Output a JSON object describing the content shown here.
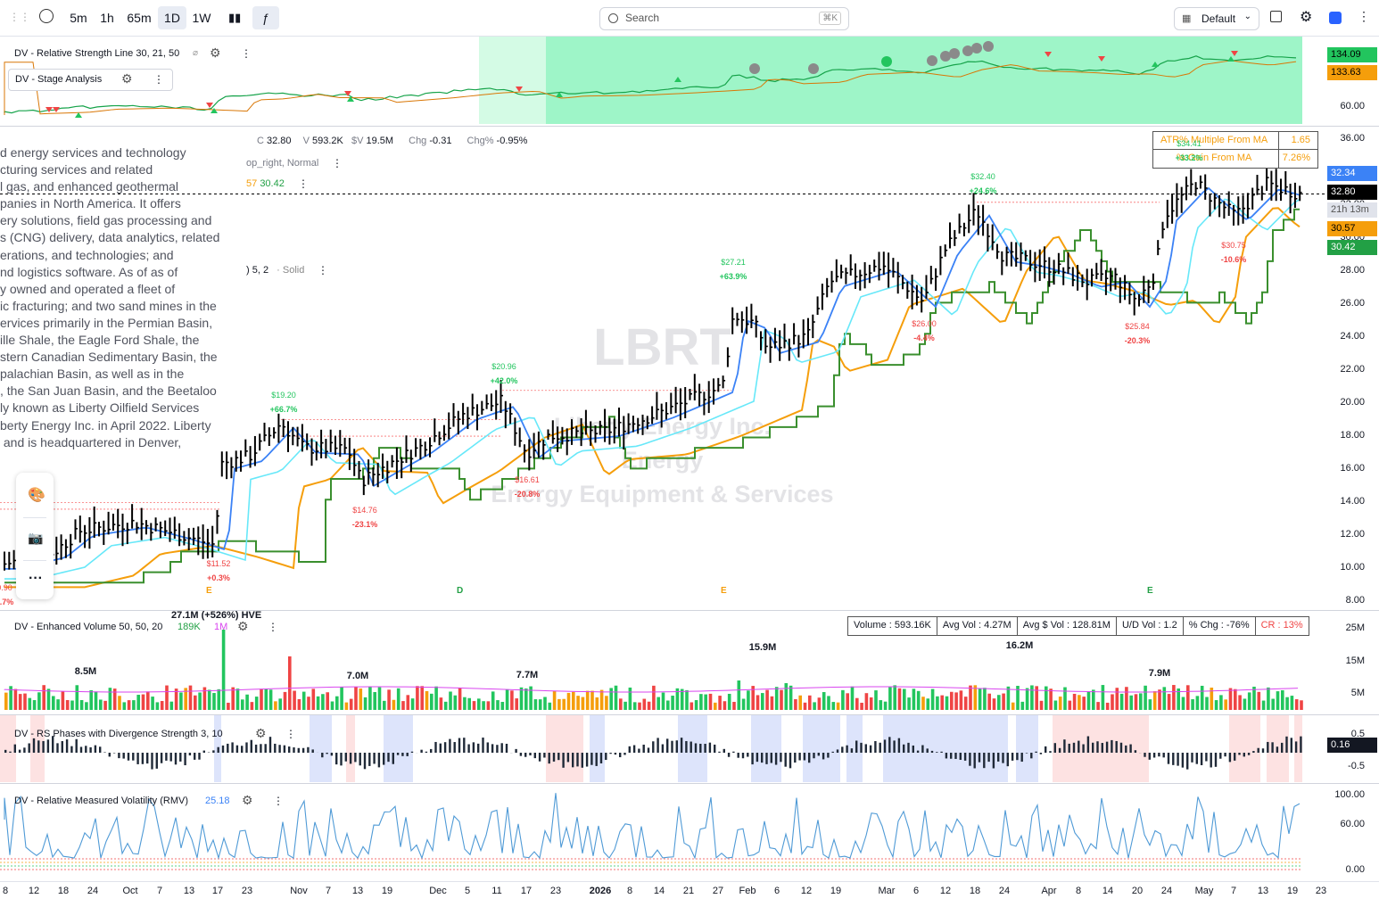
{
  "toolbar": {
    "intervals": [
      "5m",
      "1h",
      "65m",
      "1D",
      "1W"
    ],
    "active_interval": "1D",
    "search_placeholder": "Search",
    "search_shortcut": "⌘K",
    "layout_label": "Default",
    "accent": "#2962ff"
  },
  "rs_pane": {
    "title": "DV - Relative Strength Line 30, 21, 50",
    "sub_indicator": "DV - Stage Analysis",
    "axis": [
      "60.00"
    ],
    "tags": [
      {
        "value": "134.09",
        "color": "#22c55e"
      },
      {
        "value": "133.63",
        "color": "#f59e0b"
      }
    ]
  },
  "main_pane": {
    "ohlc": {
      "c_label": "C",
      "close": "32.80",
      "v_label": "V",
      "volume": "593.2K",
      "dv_label": "$V",
      "dollar_volume": "19.5M",
      "chg_label": "Chg",
      "chg": "-0.31",
      "chgp_label": "Chg%",
      "chgp": "-0.95%"
    },
    "legend_partial_1": "op_right, Normal",
    "legend_partial_2_a": "57",
    "legend_partial_2_b": "30.42",
    "legend_partial_3_a": ") 5, 2",
    "legend_partial_3_b": "· Solid",
    "description_lines": [
      "d energy services and technology",
      "cturing services and related",
      "l gas, and enhanced geothermal",
      "panies in North America. It offers",
      "ery solutions, field gas processing and",
      "s (CNG) delivery, data analytics, related",
      "erations, and technologies; and",
      "nd logistics software. As of as of",
      "y owned and operated a fleet of",
      "ic fracturing; and two sand mines in the",
      "ervices primarily in the Permian Basin,",
      "ille Shale, the Eagle Ford Shale, the",
      "stern Canadian Sedimentary Basin, the",
      "palachian Basin, as well as in the",
      ", the San Juan Basin, and the Beetaloo",
      "ly known as Liberty Oilfield Services",
      "berty Energy Inc. in April 2022. Liberty",
      " and is headquartered in Denver,"
    ],
    "watermark_symbol": "LBRT",
    "watermark_name": "Liberty Energy Inc.",
    "watermark_sector": "Energy",
    "watermark_industry": "Energy Equipment & Services",
    "axis": [
      "36.00",
      "34.00",
      "32.00",
      "30.00",
      "28.00",
      "26.00",
      "24.00",
      "22.00",
      "20.00",
      "18.00",
      "16.00",
      "14.00",
      "12.00",
      "10.00",
      "8.00"
    ],
    "tags": [
      {
        "value": "32.34",
        "color": "#3b82f6"
      },
      {
        "value": "32.80",
        "color": "#000000"
      },
      {
        "value": "21h 13m",
        "color": "#e0e3eb"
      },
      {
        "value": "30.57",
        "color": "#f59e0b"
      },
      {
        "value": "30.42",
        "color": "#22a045"
      }
    ],
    "info_table": [
      {
        "label": "ATR% Multiple From MA",
        "value": "1.65"
      },
      {
        "label": "% Gain From MA",
        "value": "7.26%"
      }
    ],
    "pivots": [
      {
        "price": "$19.20",
        "pct": "+66.7%",
        "type": "high"
      },
      {
        "price": "$20.96",
        "pct": "+42.0%",
        "type": "high"
      },
      {
        "price": "$27.21",
        "pct": "+63.9%",
        "type": "high"
      },
      {
        "price": "$32.40",
        "pct": "+24.6%",
        "type": "high"
      },
      {
        "price": "$34.41",
        "pct": "+33.2%",
        "type": "high"
      },
      {
        "price": "$11.52",
        "pct": "+0.3%",
        "type": "low"
      },
      {
        "price": "$14.76",
        "pct": "-23.1%",
        "type": "low"
      },
      {
        "price": "$16.61",
        "pct": "-20.8%",
        "type": "low"
      },
      {
        "price": "$26.00",
        "pct": "-4.4%",
        "type": "low"
      },
      {
        "price": "$25.84",
        "pct": "-20.3%",
        "type": "low"
      },
      {
        "price": "$30.75",
        "pct": "-10.6%",
        "type": "low"
      },
      {
        "price": "0.90",
        "pct": "3.7%",
        "type": "low"
      }
    ],
    "earnings_markers": [
      "E",
      "D",
      "E",
      "E"
    ]
  },
  "volume_pane": {
    "title": "DV - Enhanced Volume 50, 50, 20",
    "value_a": "189K",
    "value_b": "1M",
    "hve": "27.1M (+526%) HVE",
    "stats": [
      "Volume : 593.16K",
      "Avg Vol : 4.27M",
      "Avg $ Vol : 128.81M",
      "U/D Vol : 1.2",
      "% Chg : -76%",
      "CR : 13%"
    ],
    "peak_labels": [
      "8.5M",
      "7.0M",
      "7.7M",
      "15.9M",
      "16.2M",
      "7.9M"
    ],
    "axis": [
      "25M",
      "15M",
      "5M"
    ]
  },
  "rs_phases_pane": {
    "title": "DV - RS Phases with Divergence Strength 3, 10",
    "axis": [
      "0.5",
      "-0.5"
    ],
    "tag": "0.16"
  },
  "rmv_pane": {
    "title": "DV - Relative Measured Volatility (RMV)",
    "value": "25.18",
    "axis": [
      "100.00",
      "60.00",
      "0.00"
    ]
  },
  "x_axis": [
    "8",
    "12",
    "18",
    "24",
    "Oct",
    "7",
    "13",
    "17",
    "23",
    "Nov",
    "7",
    "13",
    "19",
    "Dec",
    "5",
    "11",
    "17",
    "23",
    "2026",
    "8",
    "14",
    "21",
    "27",
    "Feb",
    "6",
    "12",
    "19",
    "Mar",
    "6",
    "12",
    "18",
    "24",
    "Apr",
    "8",
    "14",
    "20",
    "24",
    "May",
    "7",
    "13",
    "19",
    "23"
  ],
  "colors": {
    "up": "#22c55e",
    "down": "#ef4444",
    "neutral_vol": "#f59e0b",
    "ma_blue": "#3b82f6",
    "ma_cyan": "#67e8f9",
    "ma_orange": "#f59e0b",
    "ma_green": "#3a8f2e"
  }
}
